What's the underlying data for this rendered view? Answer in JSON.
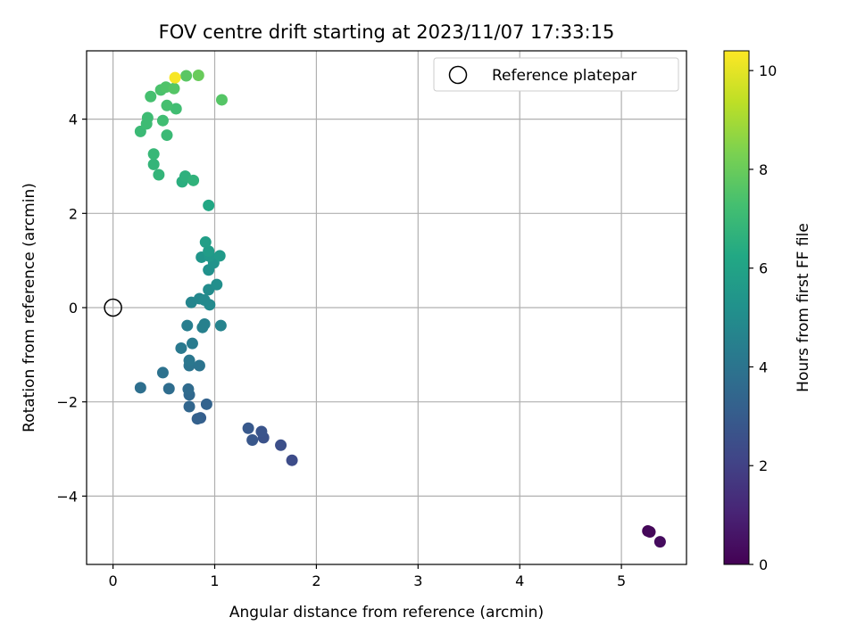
{
  "chart_data": {
    "type": "scatter",
    "title": "FOV centre drift starting at 2023/11/07 17:33:15",
    "xlabel": "Angular distance from reference (arcmin)",
    "ylabel": "Rotation from reference (arcmin)",
    "xlim": [
      -0.26,
      5.64
    ],
    "ylim": [
      -5.45,
      5.45
    ],
    "xticks": [
      0,
      1,
      2,
      3,
      4,
      5
    ],
    "yticks": [
      -4,
      -2,
      0,
      2,
      4
    ],
    "grid": true,
    "legend": {
      "placement": "top-right",
      "entries": [
        "Reference platepar"
      ]
    },
    "reference_point": {
      "x": 0,
      "y": 0,
      "label": "Reference platepar"
    },
    "colorbar": {
      "label": "Hours from first FF file",
      "colormap": "viridis",
      "range": [
        0,
        10.4
      ],
      "ticks": [
        0,
        2,
        4,
        6,
        8,
        10
      ]
    },
    "points": [
      {
        "x": 5.26,
        "y": -4.74,
        "c": 0.1
      },
      {
        "x": 5.28,
        "y": -4.76,
        "c": 0.2
      },
      {
        "x": 5.38,
        "y": -4.97,
        "c": 0.3
      },
      {
        "x": 1.76,
        "y": -3.24,
        "c": 2.4
      },
      {
        "x": 1.65,
        "y": -2.92,
        "c": 2.5
      },
      {
        "x": 1.48,
        "y": -2.76,
        "c": 2.6
      },
      {
        "x": 1.46,
        "y": -2.63,
        "c": 2.7
      },
      {
        "x": 1.37,
        "y": -2.81,
        "c": 2.8
      },
      {
        "x": 1.33,
        "y": -2.56,
        "c": 2.9
      },
      {
        "x": 0.86,
        "y": -2.34,
        "c": 3.1
      },
      {
        "x": 0.83,
        "y": -2.36,
        "c": 3.2
      },
      {
        "x": 0.92,
        "y": -2.05,
        "c": 3.3
      },
      {
        "x": 0.75,
        "y": -2.1,
        "c": 3.4
      },
      {
        "x": 0.75,
        "y": -1.85,
        "c": 3.5
      },
      {
        "x": 0.74,
        "y": -1.73,
        "c": 3.6
      },
      {
        "x": 0.55,
        "y": -1.72,
        "c": 3.7
      },
      {
        "x": 0.27,
        "y": -1.7,
        "c": 3.8
      },
      {
        "x": 0.49,
        "y": -1.38,
        "c": 3.9
      },
      {
        "x": 0.75,
        "y": -1.23,
        "c": 4.0
      },
      {
        "x": 0.85,
        "y": -1.23,
        "c": 4.0
      },
      {
        "x": 0.75,
        "y": -1.12,
        "c": 4.1
      },
      {
        "x": 0.67,
        "y": -0.86,
        "c": 4.2
      },
      {
        "x": 0.78,
        "y": -0.76,
        "c": 4.3
      },
      {
        "x": 0.73,
        "y": -0.38,
        "c": 4.4
      },
      {
        "x": 0.88,
        "y": -0.42,
        "c": 4.5
      },
      {
        "x": 0.9,
        "y": -0.35,
        "c": 4.5
      },
      {
        "x": 1.06,
        "y": -0.38,
        "c": 4.6
      },
      {
        "x": 0.77,
        "y": 0.11,
        "c": 4.7
      },
      {
        "x": 0.85,
        "y": 0.19,
        "c": 4.8
      },
      {
        "x": 0.9,
        "y": 0.16,
        "c": 4.9
      },
      {
        "x": 0.95,
        "y": 0.06,
        "c": 4.9
      },
      {
        "x": 0.94,
        "y": 0.38,
        "c": 5.0
      },
      {
        "x": 1.02,
        "y": 0.49,
        "c": 5.1
      },
      {
        "x": 0.94,
        "y": 0.8,
        "c": 5.2
      },
      {
        "x": 0.99,
        "y": 0.95,
        "c": 5.3
      },
      {
        "x": 0.87,
        "y": 1.07,
        "c": 5.4
      },
      {
        "x": 0.95,
        "y": 1.09,
        "c": 5.5
      },
      {
        "x": 1.05,
        "y": 1.1,
        "c": 5.6
      },
      {
        "x": 0.94,
        "y": 1.2,
        "c": 5.7
      },
      {
        "x": 0.91,
        "y": 1.39,
        "c": 5.8
      },
      {
        "x": 0.94,
        "y": 2.17,
        "c": 6.2
      },
      {
        "x": 0.68,
        "y": 2.67,
        "c": 6.5
      },
      {
        "x": 0.71,
        "y": 2.79,
        "c": 6.6
      },
      {
        "x": 0.79,
        "y": 2.7,
        "c": 6.7
      },
      {
        "x": 0.45,
        "y": 2.82,
        "c": 6.8
      },
      {
        "x": 0.4,
        "y": 3.04,
        "c": 6.8
      },
      {
        "x": 0.4,
        "y": 3.26,
        "c": 6.9
      },
      {
        "x": 0.27,
        "y": 3.74,
        "c": 7.0
      },
      {
        "x": 0.53,
        "y": 3.66,
        "c": 7.0
      },
      {
        "x": 0.33,
        "y": 3.9,
        "c": 7.1
      },
      {
        "x": 0.34,
        "y": 4.03,
        "c": 7.1
      },
      {
        "x": 0.49,
        "y": 3.97,
        "c": 7.2
      },
      {
        "x": 0.62,
        "y": 4.22,
        "c": 7.2
      },
      {
        "x": 0.53,
        "y": 4.29,
        "c": 7.3
      },
      {
        "x": 0.37,
        "y": 4.48,
        "c": 7.3
      },
      {
        "x": 0.47,
        "y": 4.62,
        "c": 7.4
      },
      {
        "x": 0.52,
        "y": 4.68,
        "c": 7.5
      },
      {
        "x": 0.6,
        "y": 4.65,
        "c": 7.6
      },
      {
        "x": 1.07,
        "y": 4.41,
        "c": 7.6
      },
      {
        "x": 0.72,
        "y": 4.92,
        "c": 7.7
      },
      {
        "x": 0.84,
        "y": 4.93,
        "c": 8.0
      },
      {
        "x": 0.61,
        "y": 4.88,
        "c": 10.3
      }
    ]
  }
}
